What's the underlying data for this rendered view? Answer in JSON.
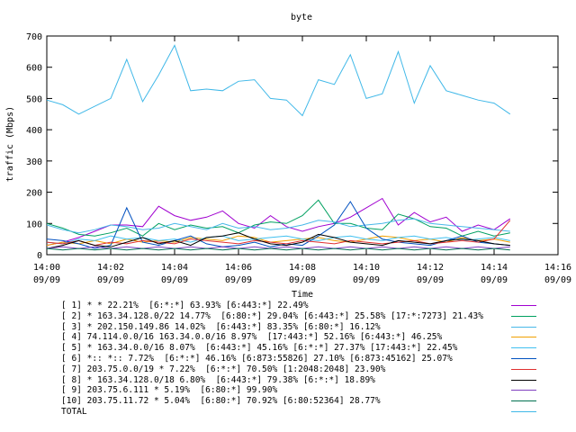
{
  "chart_data": {
    "type": "line",
    "title": "byte",
    "xlabel": "Time",
    "ylabel": "traffic (Mbps)",
    "ylim": [
      0,
      700
    ],
    "yticks": [
      "0",
      "100",
      "200",
      "300",
      "400",
      "500",
      "600",
      "700"
    ],
    "xlim": [
      "14:00",
      "14:16"
    ],
    "xticks": [
      {
        "time": "14:00",
        "date": "09/09"
      },
      {
        "time": "14:02",
        "date": "09/09"
      },
      {
        "time": "14:04",
        "date": "09/09"
      },
      {
        "time": "14:06",
        "date": "09/09"
      },
      {
        "time": "14:08",
        "date": "09/09"
      },
      {
        "time": "14:10",
        "date": "09/09"
      },
      {
        "time": "14:12",
        "date": "09/09"
      },
      {
        "time": "14:14",
        "date": "09/09"
      },
      {
        "time": "14:16",
        "date": "09/09"
      }
    ],
    "x": [
      "14:00",
      "14:00:30",
      "14:01",
      "14:01:30",
      "14:02",
      "14:02:30",
      "14:03",
      "14:03:30",
      "14:04",
      "14:04:30",
      "14:05",
      "14:05:30",
      "14:06",
      "14:06:30",
      "14:07",
      "14:07:30",
      "14:08",
      "14:08:30",
      "14:09",
      "14:09:30",
      "14:10",
      "14:10:30",
      "14:11",
      "14:11:30",
      "14:12",
      "14:12:30",
      "14:13",
      "14:13:30",
      "14:14",
      "14:14:30"
    ],
    "grid": false,
    "legend_position": "bottom",
    "series": [
      {
        "name": "[ 1] * * 22.21%  [6:*:*] 63.93% [6:443:*] 22.49%",
        "color": "#a000d0",
        "values": [
          30,
          40,
          55,
          75,
          95,
          95,
          90,
          155,
          125,
          110,
          120,
          140,
          100,
          85,
          125,
          90,
          75,
          90,
          100,
          120,
          150,
          180,
          95,
          135,
          105,
          120,
          75,
          95,
          80,
          115
        ]
      },
      {
        "name": "[ 2] * 163.34.128.0/22 14.77%  [6:80:*] 29.04% [6:443:*] 25.58% [17:*:7273] 21.43%",
        "color": "#00a060",
        "values": [
          100,
          85,
          65,
          60,
          70,
          85,
          60,
          100,
          80,
          95,
          85,
          90,
          70,
          95,
          105,
          100,
          125,
          175,
          100,
          100,
          85,
          80,
          130,
          115,
          90,
          85,
          60,
          75,
          60,
          70
        ]
      },
      {
        "name": "[ 3] * 202.150.149.86 14.02%  [6:443:*] 83.35% [6:80:*] 16.12%",
        "color": "#48b8e8",
        "values": [
          95,
          80,
          70,
          80,
          95,
          90,
          80,
          85,
          100,
          90,
          80,
          100,
          85,
          90,
          80,
          85,
          95,
          110,
          105,
          90,
          95,
          100,
          110,
          115,
          100,
          95,
          90,
          85,
          80,
          75
        ]
      },
      {
        "name": "[ 4] 74.114.0.0/16 163.34.0.0/16 8.97%  [17:443:*] 52.16% [6:443:*] 46.25%",
        "color": "#f0a000",
        "values": [
          30,
          40,
          35,
          45,
          35,
          50,
          40,
          45,
          40,
          55,
          50,
          45,
          60,
          55,
          40,
          45,
          50,
          55,
          45,
          40,
          50,
          60,
          55,
          45,
          50,
          40,
          55,
          45,
          50,
          40
        ]
      },
      {
        "name": "[ 5] * 163.34.0.0/16 8.07%  [6:443:*] 45.16% [6:*:*] 27.37% [17:443:*] 22.45%",
        "color": "#40c0f0",
        "values": [
          40,
          35,
          50,
          45,
          60,
          50,
          55,
          45,
          50,
          40,
          55,
          60,
          45,
          50,
          55,
          60,
          50,
          45,
          55,
          60,
          50,
          45,
          55,
          60,
          50,
          55,
          45,
          50,
          55,
          45
        ]
      },
      {
        "name": "[ 6] *:: *:: 7.72%  [6:*:*] 46.16% [6:873:55826] 27.10% [6:873:45162] 25.07%",
        "color": "#0050c0",
        "values": [
          50,
          45,
          35,
          20,
          30,
          150,
          40,
          30,
          45,
          60,
          35,
          25,
          30,
          40,
          25,
          35,
          30,
          60,
          95,
          170,
          85,
          50,
          40,
          35,
          30,
          45,
          60,
          40,
          35,
          30
        ]
      },
      {
        "name": "[ 7] 203.75.0.0/19 * 7.22%  [6:*:*] 70.50% [1:2048:2048] 23.90%",
        "color": "#e03030",
        "values": [
          40,
          35,
          45,
          30,
          40,
          35,
          45,
          40,
          35,
          50,
          45,
          40,
          35,
          45,
          40,
          35,
          45,
          40,
          35,
          45,
          40,
          35,
          40,
          45,
          35,
          40,
          45,
          40,
          50,
          110
        ]
      },
      {
        "name": "[ 8] * 163.34.128.0/18 6.80%  [6:443:*] 79.38% [6:*:*] 18.89%",
        "color": "#000000",
        "values": [
          20,
          30,
          45,
          30,
          25,
          40,
          55,
          35,
          45,
          30,
          55,
          60,
          70,
          50,
          35,
          30,
          40,
          65,
          55,
          40,
          35,
          30,
          45,
          40,
          35,
          45,
          50,
          45,
          35,
          30
        ]
      },
      {
        "name": "[ 9] 203.75.6.111 * 5.19%  [6:80:*] 99.90%",
        "color": "#8040c0",
        "values": [
          20,
          25,
          20,
          25,
          20,
          25,
          20,
          25,
          20,
          25,
          20,
          25,
          20,
          25,
          20,
          25,
          20,
          25,
          20,
          25,
          20,
          25,
          20,
          25,
          20,
          25,
          20,
          25,
          20,
          25
        ]
      },
      {
        "name": "[10] 203.75.11.72 * 5.04%  [6:80:*] 70.92% [6:80:52364] 28.77%",
        "color": "#007050",
        "values": [
          20,
          15,
          20,
          15,
          20,
          15,
          20,
          15,
          20,
          15,
          20,
          15,
          20,
          15,
          20,
          15,
          20,
          15,
          20,
          15,
          20,
          15,
          20,
          15,
          20,
          15,
          20,
          15,
          20,
          15
        ]
      },
      {
        "name": "TOTAL",
        "color": "#40b8e8",
        "values": [
          495,
          480,
          450,
          475,
          500,
          625,
          490,
          575,
          670,
          525,
          530,
          525,
          555,
          560,
          500,
          495,
          445,
          560,
          545,
          640,
          500,
          515,
          650,
          485,
          605,
          525,
          510,
          495,
          485,
          450
        ]
      }
    ]
  }
}
